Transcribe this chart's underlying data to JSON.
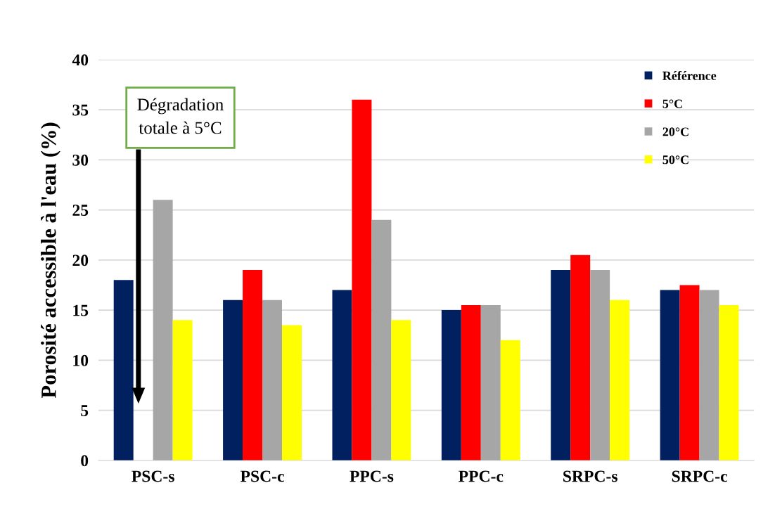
{
  "chart_data": {
    "type": "bar",
    "ylabel": "Porosité accessible à l'eau (%)",
    "categories": [
      "PSC-s",
      "PSC-c",
      "PPC-s",
      "PPC-c",
      "SRPC-s",
      "SRPC-c"
    ],
    "series": [
      {
        "name": "Référence",
        "color": "#002060",
        "values": [
          18,
          16,
          17,
          15,
          19,
          17
        ]
      },
      {
        "name": "5°C",
        "color": "#ff0000",
        "values": [
          null,
          19,
          36,
          15.5,
          20.5,
          17.5
        ]
      },
      {
        "name": "20°C",
        "color": "#a6a6a6",
        "values": [
          26,
          16,
          24,
          15.5,
          19,
          17
        ]
      },
      {
        "name": "50°C",
        "color": "#ffff00",
        "values": [
          14,
          13.5,
          14,
          12,
          16,
          15.5
        ]
      }
    ],
    "ylim": [
      0,
      40
    ],
    "yticks": [
      0,
      5,
      10,
      15,
      20,
      25,
      30,
      35,
      40
    ],
    "grid": "y",
    "legend": "top right",
    "annotations": [
      "Dégradation\ntotale à 5°C"
    ]
  }
}
